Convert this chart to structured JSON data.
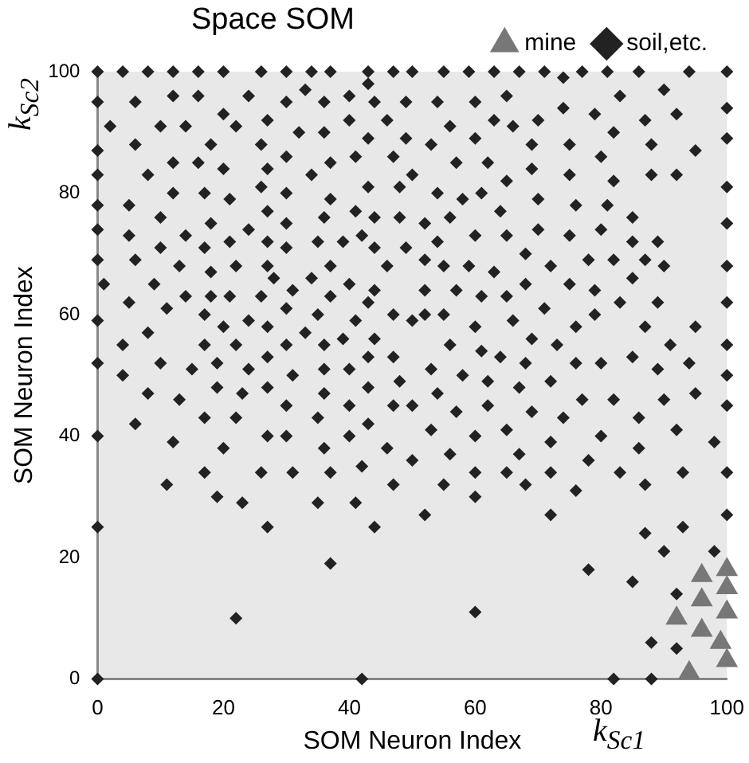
{
  "chart_data": {
    "type": "scatter",
    "title": "Space SOM",
    "xlabel": "SOM Neuron Index",
    "ylabel": "SOM Neuron Index",
    "annotations": [
      "k$_{Sc1}$",
      "k$_{Sc2}$"
    ],
    "xlim": [
      0,
      100
    ],
    "ylim": [
      0,
      100
    ],
    "xticks": [
      0,
      20,
      40,
      60,
      80,
      100
    ],
    "yticks": [
      0,
      20,
      40,
      60,
      80,
      100
    ],
    "grid": false,
    "legend": "top right",
    "series": [
      {
        "name": "mine",
        "color": "#777777",
        "marker": "triangle",
        "x": [
          96,
          100,
          96,
          100,
          92,
          100,
          96,
          99,
          100,
          94
        ],
        "values": [
          17,
          18,
          13,
          15,
          10,
          11,
          8,
          6,
          3,
          1
        ]
      },
      {
        "name": "soil,etc.",
        "color": "#222222",
        "marker": "diamond",
        "x": [
          0,
          4,
          8,
          12,
          16,
          20,
          26,
          30,
          34,
          37,
          43,
          47,
          50,
          55,
          59,
          63,
          67,
          71,
          74,
          77,
          81,
          86,
          94,
          100,
          43,
          33,
          90,
          12,
          16,
          24,
          40,
          65,
          83,
          0,
          6,
          30,
          36,
          44,
          49,
          54,
          60,
          74,
          100,
          20,
          79,
          92,
          27,
          40,
          46,
          63,
          70,
          87,
          2,
          10,
          14,
          22,
          56,
          66,
          32,
          36,
          82,
          43,
          49,
          60,
          100,
          6,
          18,
          26,
          53,
          69,
          75,
          88,
          0,
          95,
          30,
          41,
          47,
          80,
          12,
          16,
          37,
          57,
          62,
          20,
          27,
          69,
          0,
          8,
          34,
          50,
          75,
          88,
          92,
          65,
          82,
          26,
          43,
          48,
          100,
          12,
          17,
          30,
          54,
          61,
          21,
          37,
          58,
          70,
          0,
          5,
          76,
          81,
          27,
          41,
          64,
          10,
          36,
          44,
          48,
          56,
          85,
          18,
          30,
          52,
          100,
          0,
          24,
          70,
          80,
          5,
          14,
          42,
          60,
          65,
          75,
          21,
          27,
          35,
          39,
          54,
          85,
          89,
          10,
          17,
          30,
          44,
          49,
          68,
          0,
          6,
          52,
          78,
          82,
          87,
          13,
          22,
          27,
          37,
          46,
          55,
          59,
          72,
          90,
          100,
          18,
          63,
          28,
          34,
          85,
          1,
          9,
          40,
          68,
          75,
          31,
          44,
          52,
          57,
          79,
          14,
          18,
          21,
          26,
          37,
          61,
          65,
          5,
          43,
          83,
          89,
          100,
          11,
          30,
          71,
          52,
          55,
          17,
          35,
          47,
          79,
          0,
          24,
          41,
          50,
          66,
          20,
          27,
          60,
          76,
          87,
          95,
          8,
          33,
          39,
          44,
          69,
          4,
          17,
          22,
          30,
          36,
          56,
          73,
          91,
          100,
          61,
          27,
          43,
          47,
          64,
          85,
          0,
          10,
          19,
          24,
          68,
          76,
          80,
          94,
          15,
          36,
          40,
          53,
          89,
          4,
          31,
          58,
          100,
          62,
          72,
          48,
          67,
          19,
          27,
          43,
          8,
          23,
          36,
          54,
          95,
          13,
          77,
          82,
          90,
          30,
          40,
          47,
          50,
          62,
          100,
          57,
          69,
          17,
          22,
          35,
          74,
          86,
          6,
          43,
          53,
          65,
          92,
          0,
          27,
          30,
          40,
          60,
          80,
          12,
          72,
          98,
          20,
          36,
          46,
          86,
          56,
          67,
          50,
          78,
          42,
          60,
          72,
          17,
          26,
          31,
          37,
          65,
          83,
          93,
          100,
          11,
          47,
          55,
          68,
          87,
          76,
          19,
          60,
          23,
          35,
          41,
          52,
          72,
          100,
          0,
          44,
          27,
          93,
          87,
          90,
          98,
          37,
          78,
          85,
          92,
          60,
          22,
          88,
          92,
          0,
          42,
          82,
          88
        ],
        "values": [
          100,
          100,
          100,
          100,
          100,
          100,
          100,
          100,
          100,
          100,
          100,
          100,
          100,
          100,
          100,
          100,
          100,
          100,
          99,
          100,
          100,
          100,
          100,
          100,
          98,
          97,
          97,
          96,
          96,
          96,
          96,
          96,
          96,
          95,
          95,
          95,
          95,
          95,
          95,
          95,
          95,
          94,
          94,
          93,
          93,
          93,
          92,
          92,
          92,
          92,
          92,
          92,
          91,
          91,
          91,
          91,
          91,
          91,
          90,
          90,
          90,
          89,
          89,
          89,
          89,
          88,
          88,
          88,
          88,
          88,
          88,
          88,
          87,
          87,
          86,
          86,
          86,
          86,
          85,
          85,
          85,
          85,
          85,
          84,
          84,
          84,
          83,
          83,
          83,
          83,
          83,
          83,
          83,
          82,
          82,
          81,
          81,
          81,
          81,
          80,
          80,
          80,
          80,
          80,
          79,
          79,
          79,
          79,
          78,
          78,
          78,
          78,
          77,
          77,
          77,
          76,
          76,
          76,
          76,
          76,
          76,
          75,
          75,
          75,
          75,
          74,
          74,
          74,
          74,
          73,
          73,
          73,
          73,
          73,
          73,
          72,
          72,
          72,
          72,
          72,
          72,
          72,
          71,
          71,
          71,
          71,
          71,
          70,
          69,
          69,
          69,
          69,
          69,
          69,
          68,
          68,
          68,
          68,
          68,
          68,
          68,
          68,
          68,
          68,
          67,
          67,
          66,
          66,
          66,
          65,
          65,
          65,
          65,
          65,
          64,
          64,
          64,
          64,
          64,
          63,
          63,
          63,
          63,
          63,
          63,
          63,
          62,
          62,
          62,
          62,
          62,
          61,
          61,
          61,
          60,
          60,
          60,
          60,
          60,
          60,
          59,
          59,
          59,
          59,
          59,
          58,
          58,
          58,
          58,
          58,
          58,
          57,
          57,
          56,
          56,
          56,
          55,
          55,
          55,
          55,
          55,
          55,
          55,
          55,
          55,
          54,
          53,
          53,
          53,
          53,
          53,
          52,
          52,
          52,
          51,
          52,
          52,
          52,
          52,
          51,
          51,
          51,
          51,
          51,
          50,
          50,
          50,
          50,
          49,
          49,
          49,
          48,
          48,
          48,
          48,
          47,
          47,
          47,
          47,
          47,
          46,
          46,
          46,
          46,
          45,
          45,
          45,
          45,
          45,
          45,
          44,
          44,
          43,
          43,
          43,
          43,
          43,
          42,
          42,
          41,
          41,
          41,
          40,
          40,
          40,
          40,
          40,
          40,
          39,
          39,
          39,
          38,
          38,
          38,
          38,
          37,
          37,
          36,
          36,
          35,
          34,
          34,
          34,
          34,
          34,
          34,
          34,
          34,
          34,
          34,
          32,
          32,
          32,
          32,
          32,
          31,
          30,
          30,
          29,
          29,
          29,
          27,
          27,
          27,
          25,
          25,
          25,
          25,
          24,
          21,
          21,
          19,
          18,
          16,
          14,
          11,
          10,
          6,
          5,
          0,
          0,
          0,
          0
        ]
      }
    ]
  }
}
